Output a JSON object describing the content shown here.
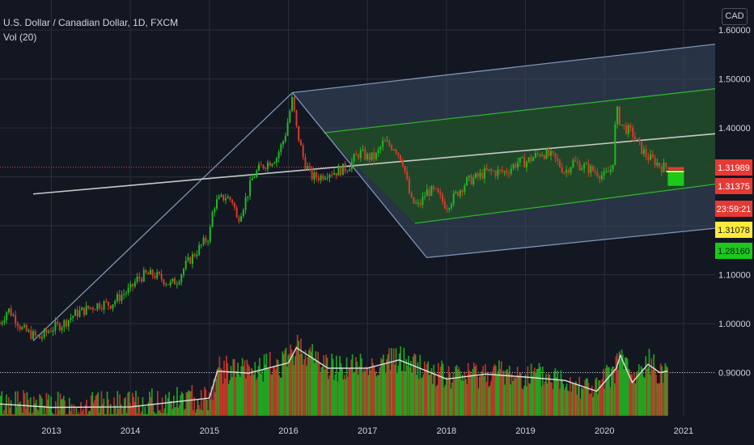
{
  "header": {
    "title": "U.S. Dollar / Canadian Dollar, 1D, FXCM",
    "volume_label": "Vol (20)"
  },
  "currency_badge": "CAD",
  "colors": {
    "background": "#131722",
    "grid": "#2a2e39",
    "up": "#26a69a",
    "candle_up": "#22b822",
    "candle_down": "#d83a2a",
    "channel_green": "#2fb02f",
    "channel_fill": "#1e4a24",
    "outer_fill": "#3a4a62",
    "outer_line": "#7e94b6",
    "median_line": "#c8c8c8"
  },
  "price_badges": [
    {
      "text": "1.31989",
      "bg": "#e53935",
      "fg": "#ffffff"
    },
    {
      "text": "1.31375",
      "bg": "#e53935",
      "fg": "#ffffff"
    },
    {
      "text": "23:59:21",
      "bg": "#e53935",
      "fg": "#ffffff"
    },
    {
      "text": "1.31078",
      "bg": "#ffeb3b",
      "fg": "#131722"
    },
    {
      "text": "1.28160",
      "bg": "#1ac91a",
      "fg": "#131722"
    }
  ],
  "chart_data": {
    "type": "line",
    "title": "U.S. Dollar / Canadian Dollar, 1D, FXCM",
    "xlabel": "",
    "ylabel": "",
    "y_ticks": [
      "1.60000",
      "1.50000",
      "1.40000",
      "1.10000",
      "1.00000",
      "0.90000"
    ],
    "y_tick_values": [
      1.6,
      1.5,
      1.4,
      1.1,
      1.0,
      0.9
    ],
    "x_ticks": [
      "2013",
      "2014",
      "2015",
      "2016",
      "2017",
      "2018",
      "2019",
      "2020",
      "2021"
    ],
    "x_tick_values": [
      2013,
      2014,
      2015,
      2016,
      2017,
      2018,
      2019,
      2020,
      2021
    ],
    "xlim": [
      2012.35,
      2021.4
    ],
    "ylim": [
      0.81,
      1.615
    ],
    "grid": true,
    "dotted_reference_lines": [
      1.31989,
      0.9
    ],
    "series": [
      {
        "name": "",
        "x": [
          2012.35,
          2012.45,
          2012.55,
          2012.62,
          2012.72,
          2012.85,
          2013.0,
          2013.15,
          2013.3,
          2013.45,
          2013.6,
          2013.75,
          2013.9,
          2014.0,
          2014.08,
          2014.18,
          2014.3,
          2014.42,
          2014.5,
          2014.6,
          2014.7,
          2014.8,
          2014.9,
          2015.0,
          2015.05,
          2015.1,
          2015.2,
          2015.3,
          2015.35,
          2015.45,
          2015.55,
          2015.65,
          2015.75,
          2015.85,
          2015.95,
          2016.05,
          2016.1,
          2016.2,
          2016.3,
          2016.4,
          2016.5,
          2016.6,
          2016.75,
          2016.9,
          2017.0,
          2017.1,
          2017.2,
          2017.35,
          2017.45,
          2017.55,
          2017.65,
          2017.75,
          2017.85,
          2018.0,
          2018.1,
          2018.25,
          2018.4,
          2018.5,
          2018.6,
          2018.75,
          2018.9,
          2019.0,
          2019.1,
          2019.2,
          2019.35,
          2019.5,
          2019.6,
          2019.75,
          2019.9,
          2020.0,
          2020.1,
          2020.15,
          2020.2,
          2020.25,
          2020.35,
          2020.45,
          2020.55,
          2020.65,
          2020.72,
          2020.8
        ],
        "values": [
          1.0,
          1.03,
          1.01,
          0.99,
          0.98,
          0.97,
          0.99,
          1.0,
          1.02,
          1.03,
          1.04,
          1.04,
          1.06,
          1.07,
          1.09,
          1.1,
          1.1,
          1.09,
          1.08,
          1.09,
          1.12,
          1.14,
          1.16,
          1.18,
          1.24,
          1.25,
          1.26,
          1.25,
          1.21,
          1.25,
          1.3,
          1.32,
          1.33,
          1.34,
          1.38,
          1.46,
          1.4,
          1.33,
          1.3,
          1.3,
          1.31,
          1.31,
          1.32,
          1.35,
          1.34,
          1.34,
          1.37,
          1.36,
          1.33,
          1.25,
          1.24,
          1.27,
          1.27,
          1.24,
          1.26,
          1.29,
          1.3,
          1.31,
          1.31,
          1.31,
          1.33,
          1.33,
          1.34,
          1.35,
          1.34,
          1.31,
          1.33,
          1.32,
          1.31,
          1.3,
          1.32,
          1.44,
          1.41,
          1.4,
          1.39,
          1.36,
          1.34,
          1.33,
          1.32,
          1.32
        ]
      }
    ],
    "volume": {
      "x": [
        2012.35,
        2013.0,
        2014.0,
        2014.5,
        2015.0,
        2015.1,
        2015.5,
        2016.0,
        2016.1,
        2016.5,
        2017.0,
        2017.4,
        2018.0,
        2018.5,
        2019.0,
        2019.5,
        2019.9,
        2020.15,
        2020.2,
        2020.35,
        2020.55,
        2020.7,
        2020.8
      ],
      "ma": [
        0.836,
        0.829,
        0.83,
        0.839,
        0.848,
        0.903,
        0.899,
        0.92,
        0.951,
        0.909,
        0.909,
        0.926,
        0.887,
        0.897,
        0.891,
        0.884,
        0.862,
        0.909,
        0.935,
        0.88,
        0.917,
        0.9,
        0.903
      ]
    },
    "annotations": {
      "pitchfork_handle": [
        [
          2012.77,
          0.965
        ],
        [
          2016.05,
          1.472
        ],
        [
          2017.75,
          1.135
        ]
      ],
      "median_line": [
        [
          2012.77,
          1.265
        ],
        [
          2021.4,
          1.388
        ]
      ],
      "inner_upper": [
        [
          2016.45,
          1.39
        ],
        [
          2021.4,
          1.48
        ]
      ],
      "inner_lower": [
        [
          2017.6,
          1.205
        ],
        [
          2021.4,
          1.285
        ]
      ],
      "outer_upper": [
        [
          2016.05,
          1.472
        ],
        [
          2021.4,
          1.571
        ]
      ],
      "outer_lower": [
        [
          2017.75,
          1.135
        ],
        [
          2021.4,
          1.195
        ]
      ]
    }
  }
}
